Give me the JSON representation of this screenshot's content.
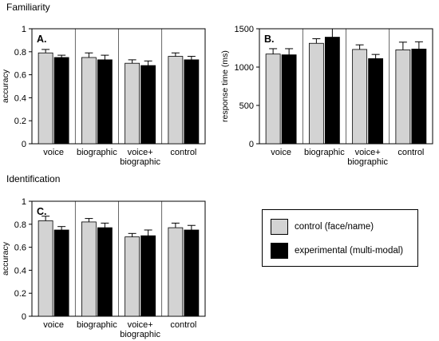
{
  "titles": {
    "familiarity": "Familiarity",
    "identification": "Identification"
  },
  "colors": {
    "control": "#d3d3d3",
    "experimental": "#000000"
  },
  "legend": [
    {
      "label": "control (face/name)",
      "color": "#d3d3d3"
    },
    {
      "label": "experimental (multi-modal)",
      "color": "#000000"
    }
  ],
  "chart_data": [
    {
      "type": "bar",
      "panel_label": "A.",
      "categories": [
        "voice",
        "biographic",
        "voice+\nbiographic",
        "control"
      ],
      "series": [
        {
          "name": "control (face/name)",
          "values": [
            0.79,
            0.75,
            0.7,
            0.76
          ],
          "errors": [
            0.03,
            0.04,
            0.03,
            0.03
          ]
        },
        {
          "name": "experimental (multi-modal)",
          "values": [
            0.75,
            0.73,
            0.68,
            0.73
          ],
          "errors": [
            0.02,
            0.04,
            0.04,
            0.03
          ]
        }
      ],
      "ylabel": "accuracy",
      "ylim": [
        0,
        1
      ],
      "yticks": [
        0,
        0.2,
        0.4,
        0.6,
        0.8,
        1
      ],
      "ytick_labels": [
        "0",
        "0.2",
        "0.4",
        "0.6",
        "0.8",
        "1"
      ]
    },
    {
      "type": "bar",
      "panel_label": "B.",
      "categories": [
        "voice",
        "biographic",
        "voice+\nbiographic",
        "control"
      ],
      "series": [
        {
          "name": "control (face/name)",
          "values": [
            1170,
            1310,
            1230,
            1225
          ],
          "errors": [
            70,
            60,
            60,
            100
          ]
        },
        {
          "name": "experimental (multi-modal)",
          "values": [
            1160,
            1390,
            1110,
            1235
          ],
          "errors": [
            80,
            110,
            55,
            95
          ]
        }
      ],
      "ylabel": "response time (ms)",
      "ylim": [
        0,
        1500
      ],
      "yticks": [
        0,
        500,
        1000,
        1500
      ],
      "ytick_labels": [
        "0",
        "500",
        "1000",
        "1500"
      ]
    },
    {
      "type": "bar",
      "panel_label": "C.",
      "categories": [
        "voice",
        "biographic",
        "voice+\nbiographic",
        "control"
      ],
      "series": [
        {
          "name": "control (face/name)",
          "values": [
            0.83,
            0.82,
            0.69,
            0.77
          ],
          "errors": [
            0.04,
            0.03,
            0.03,
            0.04
          ]
        },
        {
          "name": "experimental (multi-modal)",
          "values": [
            0.75,
            0.77,
            0.7,
            0.75
          ],
          "errors": [
            0.03,
            0.04,
            0.05,
            0.04
          ]
        }
      ],
      "ylabel": "accuracy",
      "ylim": [
        0,
        1
      ],
      "yticks": [
        0,
        0.2,
        0.4,
        0.6,
        0.8,
        1
      ],
      "ytick_labels": [
        "0",
        "0.2",
        "0.4",
        "0.6",
        "0.8",
        "1"
      ]
    }
  ]
}
